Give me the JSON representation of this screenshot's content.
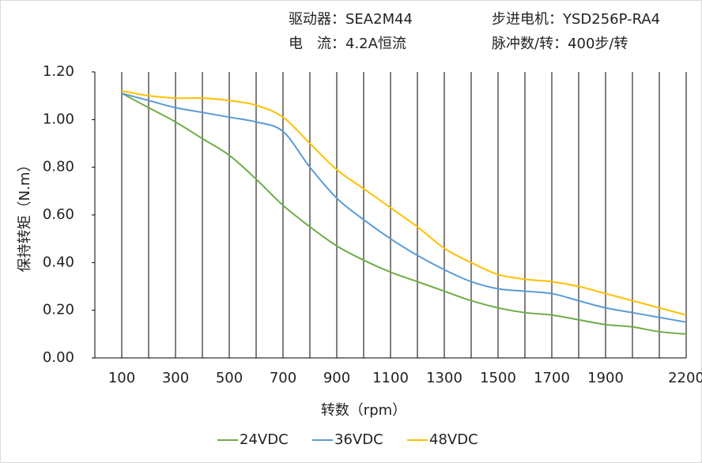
{
  "chart_data": {
    "type": "line",
    "annotations": [
      "驱动器：SEA2M44",
      "步进电机：YSD256P-RA4",
      "电　流：4.2A恒流",
      "脉冲数/转：400步/转"
    ],
    "x_label": "转数（rpm）",
    "y_label": "保持转矩（N.m）",
    "x": [
      100,
      200,
      300,
      400,
      500,
      600,
      700,
      800,
      900,
      1000,
      1100,
      1200,
      1300,
      1400,
      1500,
      1600,
      1700,
      1800,
      1900,
      2000,
      2100,
      2200
    ],
    "series": [
      {
        "name": "24VDC",
        "color": "#70ad47",
        "values": [
          1.11,
          1.05,
          0.99,
          0.92,
          0.85,
          0.75,
          0.64,
          0.55,
          0.47,
          0.41,
          0.36,
          0.32,
          0.28,
          0.24,
          0.21,
          0.19,
          0.18,
          0.16,
          0.14,
          0.13,
          0.11,
          0.1
        ]
      },
      {
        "name": "36VDC",
        "color": "#5b9bd5",
        "values": [
          1.11,
          1.08,
          1.05,
          1.03,
          1.01,
          0.99,
          0.95,
          0.8,
          0.67,
          0.58,
          0.5,
          0.43,
          0.37,
          0.32,
          0.29,
          0.28,
          0.27,
          0.24,
          0.21,
          0.19,
          0.17,
          0.15
        ]
      },
      {
        "name": "48VDC",
        "color": "#ffc000",
        "values": [
          1.12,
          1.1,
          1.09,
          1.09,
          1.08,
          1.06,
          1.01,
          0.9,
          0.79,
          0.71,
          0.63,
          0.55,
          0.46,
          0.4,
          0.35,
          0.33,
          0.32,
          0.3,
          0.27,
          0.24,
          0.21,
          0.18
        ]
      }
    ],
    "xlim": [
      0,
      2200
    ],
    "xticks": [
      100,
      300,
      500,
      700,
      900,
      1100,
      1300,
      1500,
      1700,
      1900,
      2200
    ],
    "x_grid": [
      0,
      100,
      200,
      300,
      400,
      500,
      600,
      700,
      800,
      900,
      1000,
      1100,
      1200,
      1300,
      1400,
      1500,
      1600,
      1700,
      1800,
      1900,
      2000,
      2100,
      2200
    ],
    "ylim": [
      0,
      1.2
    ],
    "yticks": [
      {
        "value": 0,
        "label": "0.00"
      },
      {
        "value": 0.2,
        "label": "0.20"
      },
      {
        "value": 0.4,
        "label": "0.40"
      },
      {
        "value": 0.6,
        "label": "0.60"
      },
      {
        "value": 0.8,
        "label": "0.80"
      },
      {
        "value": 1,
        "label": "1.00"
      },
      {
        "value": 1.2,
        "label": "1.20"
      }
    ],
    "legend": "bottom"
  }
}
